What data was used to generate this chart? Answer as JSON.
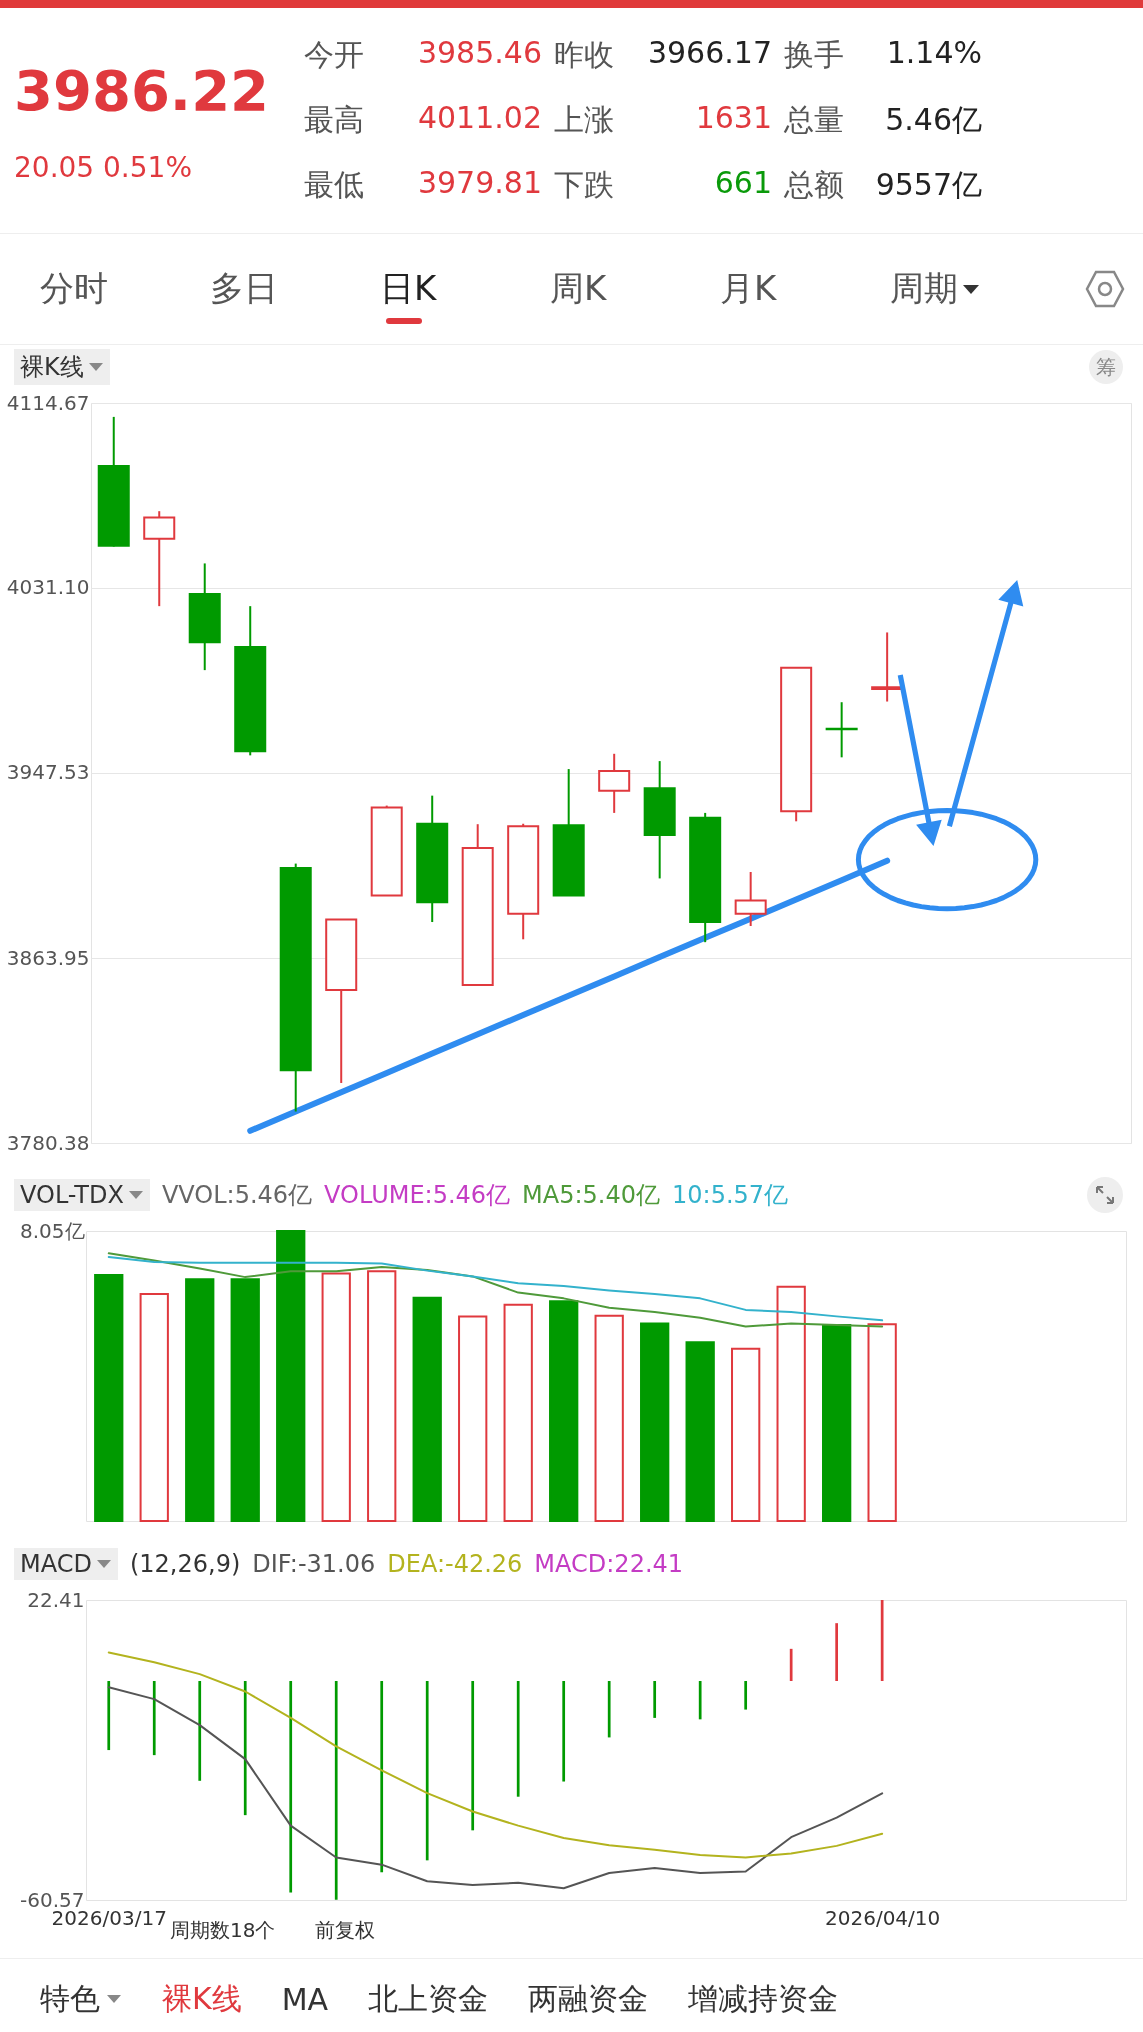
{
  "chart_data": [
    {
      "type": "other",
      "annotations": [
        "3986.22",
        "20.05 0.51%",
        "今开",
        "3985.46",
        "昨收",
        "3966.17",
        "换手",
        "1.14%",
        "最高",
        "4011.02",
        "上涨",
        "1631",
        "总量",
        "5.46亿",
        "最低",
        "3979.81",
        "下跌",
        "661",
        "总额",
        "9557亿",
        "分时",
        "多日",
        "日K",
        "周K",
        "月K",
        "周期"
      ]
    },
    {
      "type": "candlestick",
      "title": "裸K线",
      "annotations": [
        "筹"
      ],
      "categories": [
        "2026/03/17",
        null,
        null,
        null,
        null,
        null,
        null,
        null,
        null,
        null,
        null,
        null,
        null,
        null,
        null,
        null,
        null,
        "2026/04/10"
      ],
      "ohlc": [
        [
          4086.2,
          4108.4,
          4049.8,
          4050.2
        ],
        [
          4053.3,
          4065.8,
          4022.9,
          4062.9
        ],
        [
          4028.4,
          4042.2,
          3994.0,
          4006.6
        ],
        [
          4004.4,
          4022.9,
          3955.5,
          3957.3
        ],
        [
          3904.6,
          3906.6,
          3794.6,
          3813.3
        ],
        [
          3849.5,
          3881.3,
          3807.5,
          3881.3
        ],
        [
          3892.2,
          3932.8,
          3892.2,
          3931.9
        ],
        [
          3924.6,
          3937.3,
          3880.2,
          3889.1
        ],
        [
          3851.7,
          3924.4,
          3851.7,
          3913.7
        ],
        [
          3883.9,
          3924.6,
          3872.4,
          3923.5
        ],
        [
          3923.9,
          3949.3,
          3892.2,
          3892.2
        ],
        [
          3939.5,
          3956.2,
          3929.5,
          3948.4
        ],
        [
          3940.6,
          3952.9,
          3899.9,
          3919.5
        ],
        [
          3927.3,
          3929.5,
          3871.1,
          3880.2
        ],
        [
          3883.9,
          3902.8,
          3878.4,
          3889.9
        ],
        [
          3930.2,
          3995.1,
          3925.7,
          3995.1
        ],
        [
          3967.5,
          3979.5,
          3954.6,
          3967.3
        ],
        [
          3985.46,
          4011.02,
          3979.81,
          3986.22
        ]
      ],
      "colors": [
        "#009a00",
        "#e0393e",
        "#009a00",
        "#009a00",
        "#009a00",
        "#e0393e",
        "#e0393e",
        "#009a00",
        "#e0393e",
        "#e0393e",
        "#009a00",
        "#e0393e",
        "#009a00",
        "#009a00",
        "#e0393e",
        "#e0393e",
        "#009a00",
        "#e0393e"
      ],
      "series": [
        {
          "type": "line",
          "color": "#2f8cf0",
          "values": [
            null,
            null,
            null,
            3785.9,
            3794.6,
            3803.3,
            3812.0,
            3820.8,
            3829.5,
            3838.2,
            3846.9,
            3855.6,
            3864.4,
            3873.1,
            3881.7,
            3890.4,
            3899.1,
            3907.9
          ]
        }
      ],
      "ylim": [
        3780.38,
        4114.67
      ],
      "yticks": [
        4114.67,
        {
          "value": 4031.1,
          "label": "4031.10"
        },
        3947.53,
        3863.95,
        3780.38
      ],
      "grid": "y",
      "tick_labels": "y"
    },
    {
      "type": "bar",
      "title": "VOL-TDX",
      "annotations": [
        "VVOL:5.46亿",
        "VOLUME:5.46亿"
      ],
      "categories": [
        "2026/03/17",
        null,
        null,
        null,
        null,
        null,
        null,
        null,
        null,
        null,
        null,
        null,
        null,
        null,
        null,
        null,
        null,
        "2026/04/10"
      ],
      "values": [
        6.83,
        6.3,
        6.71,
        6.71,
        8.05,
        6.87,
        6.93,
        6.2,
        5.68,
        6.0,
        6.1,
        5.7,
        5.48,
        4.96,
        4.78,
        6.5,
        5.44,
        5.46
      ],
      "colors": [
        "#009a00",
        "#e0393e",
        "#009a00",
        "#009a00",
        "#009a00",
        "#e0393e",
        "#e0393e",
        "#009a00",
        "#e0393e",
        "#e0393e",
        "#009a00",
        "#e0393e",
        "#009a00",
        "#009a00",
        "#e0393e",
        "#e0393e",
        "#009a00",
        "#e0393e"
      ],
      "series": [
        {
          "name": "MA5:5.40亿",
          "type": "line",
          "color": "#4f9a3a",
          "values": [
            7.43,
            7.23,
            7.01,
            6.77,
            6.93,
            6.93,
            7.05,
            6.97,
            6.79,
            6.34,
            6.18,
            5.92,
            5.8,
            5.64,
            5.4,
            5.48,
            5.44,
            5.4
          ]
        },
        {
          "name": "10:5.57亿",
          "type": "line",
          "color": "#33b2cc",
          "values": [
            7.33,
            7.19,
            7.17,
            7.17,
            7.17,
            7.17,
            7.15,
            6.95,
            6.79,
            6.6,
            6.52,
            6.4,
            6.3,
            6.18,
            5.86,
            5.8,
            5.68,
            5.57
          ]
        }
      ],
      "ylim": [
        0,
        8.05
      ],
      "yticks": [
        {
          "value": 0,
          "label": null
        },
        {
          "value": 8.05,
          "label": "8.05亿"
        }
      ],
      "tick_labels": "y"
    },
    {
      "type": "bar",
      "title": "MACD",
      "annotations": [
        "(12,26,9)",
        "MACD:22.41",
        "周期数18个",
        "前复权"
      ],
      "categories": [
        "2026/03/17",
        null,
        null,
        null,
        null,
        null,
        null,
        null,
        null,
        null,
        null,
        null,
        null,
        null,
        null,
        null,
        null,
        "2026/04/10"
      ],
      "values": [
        -19.1,
        -20.5,
        -27.6,
        -37.1,
        -58.5,
        -60.5,
        -52.9,
        -49.6,
        -41.3,
        -32.0,
        -27.8,
        -15.6,
        -10.2,
        -10.6,
        -7.9,
        8.9,
        16.0,
        22.41
      ],
      "colors": [
        "#009a00",
        "#009a00",
        "#009a00",
        "#009a00",
        "#009a00",
        "#009a00",
        "#009a00",
        "#009a00",
        "#009a00",
        "#009a00",
        "#009a00",
        "#009a00",
        "#009a00",
        "#009a00",
        "#009a00",
        "#e0393e",
        "#e0393e",
        "#e0393e"
      ],
      "series": [
        {
          "name": "DIF:-31.06",
          "type": "line",
          "color": "#555555",
          "values": [
            -1.7,
            -5.0,
            -12.2,
            -21.6,
            -40.0,
            -48.8,
            -50.8,
            -55.4,
            -56.4,
            -55.8,
            -57.3,
            -53.1,
            -51.7,
            -53.1,
            -52.7,
            -43.2,
            -37.8,
            -31.06
          ]
        },
        {
          "name": "DEA:-42.26",
          "type": "line",
          "color": "#b3b31e",
          "values": [
            7.9,
            5.2,
            1.9,
            -2.9,
            -10.2,
            -18.1,
            -24.7,
            -31.0,
            -36.1,
            -40.0,
            -43.4,
            -45.4,
            -46.7,
            -48.1,
            -48.8,
            -47.7,
            -45.6,
            -42.26
          ]
        }
      ],
      "ylim": [
        -60.57,
        22.41
      ],
      "yticks": [
        22.41,
        -60.57
      ]
    },
    {
      "type": "other",
      "annotations": [
        "特色",
        "裸K线",
        "MA",
        "北上资金",
        "两融资金",
        "增减持资金"
      ]
    }
  ]
}
